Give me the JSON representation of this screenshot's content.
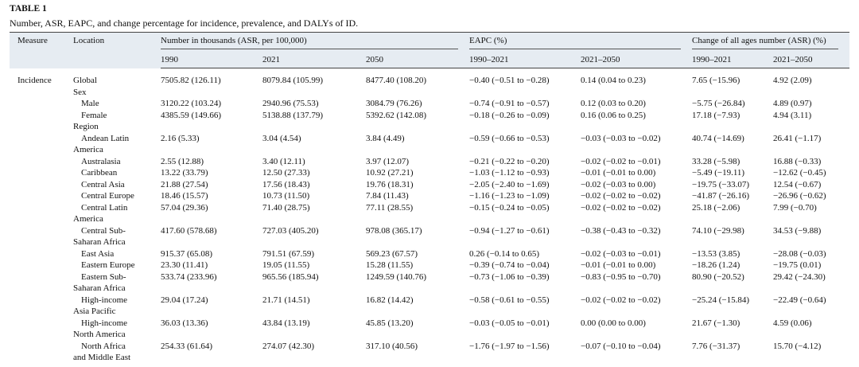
{
  "header": {
    "label": "TABLE 1",
    "caption": "Number, ASR, EAPC, and change percentage for incidence, prevalence, and DALYs of ID."
  },
  "table": {
    "group_headers": [
      "Measure",
      "Location",
      "Number in thousands (ASR, per 100,000)",
      "EAPC (%)",
      "Change of all ages number (ASR) (%)"
    ],
    "sub_headers": [
      "1990",
      "2021",
      "2050",
      "1990–2021",
      "2021–2050",
      "1990–2021",
      "2021–2050"
    ],
    "rows": [
      {
        "measure": "Incidence",
        "location": [
          "Global"
        ],
        "values": [
          "7505.82 (126.11)",
          "8079.84 (105.99)",
          "8477.40 (108.20)",
          "−0.40 (−0.51 to −0.28)",
          "0.14 (0.04 to 0.23)",
          "7.65 (−15.96)",
          "4.92 (2.09)"
        ]
      },
      {
        "section": "Sex"
      },
      {
        "location": [
          "Male"
        ],
        "values": [
          "3120.22 (103.24)",
          "2940.96 (75.53)",
          "3084.79 (76.26)",
          "−0.74 (−0.91 to −0.57)",
          "0.12 (0.03 to 0.20)",
          "−5.75 (−26.84)",
          "4.89 (0.97)"
        ]
      },
      {
        "location": [
          "Female"
        ],
        "values": [
          "4385.59 (149.66)",
          "5138.88 (137.79)",
          "5392.62 (142.08)",
          "−0.18 (−0.26 to −0.09)",
          "0.16 (0.06 to 0.25)",
          "17.18 (−7.93)",
          "4.94 (3.11)"
        ]
      },
      {
        "section": "Region"
      },
      {
        "location": [
          "Andean Latin",
          "America"
        ],
        "values": [
          "2.16 (5.33)",
          "3.04 (4.54)",
          "3.84 (4.49)",
          "−0.59 (−0.66 to −0.53)",
          "−0.03 (−0.03 to −0.02)",
          "40.74 (−14.69)",
          "26.41 (−1.17)"
        ]
      },
      {
        "location": [
          "Australasia"
        ],
        "values": [
          "2.55 (12.88)",
          "3.40 (12.11)",
          "3.97 (12.07)",
          "−0.21 (−0.22 to −0.20)",
          "−0.02 (−0.02 to −0.01)",
          "33.28 (−5.98)",
          "16.88 (−0.33)"
        ]
      },
      {
        "location": [
          "Caribbean"
        ],
        "values": [
          "13.22 (33.79)",
          "12.50 (27.33)",
          "10.92 (27.21)",
          "−1.03 (−1.12 to −0.93)",
          "−0.01 (−0.01 to 0.00)",
          "−5.49 (−19.11)",
          "−12.62 (−0.45)"
        ]
      },
      {
        "location": [
          "Central Asia"
        ],
        "values": [
          "21.88 (27.54)",
          "17.56 (18.43)",
          "19.76 (18.31)",
          "−2.05 (−2.40 to −1.69)",
          "−0.02 (−0.03 to 0.00)",
          "−19.75 (−33.07)",
          "12.54 (−0.67)"
        ]
      },
      {
        "location": [
          "Central Europe"
        ],
        "values": [
          "18.46 (15.57)",
          "10.73 (11.50)",
          "7.84 (11.43)",
          "−1.16 (−1.23 to −1.09)",
          "−0.02 (−0.02 to −0.02)",
          "−41.87 (−26.16)",
          "−26.96 (−0.62)"
        ]
      },
      {
        "location": [
          "Central Latin",
          "America"
        ],
        "values": [
          "57.04 (29.36)",
          "71.40 (28.75)",
          "77.11 (28.55)",
          "−0.15 (−0.24 to −0.05)",
          "−0.02 (−0.02 to −0.02)",
          "25.18 (−2.06)",
          "7.99 (−0.70)"
        ]
      },
      {
        "location": [
          "Central Sub-",
          "Saharan Africa"
        ],
        "values": [
          "417.60 (578.68)",
          "727.03 (405.20)",
          "978.08 (365.17)",
          "−0.94 (−1.27 to −0.61)",
          "−0.38 (−0.43 to −0.32)",
          "74.10 (−29.98)",
          "34.53 (−9.88)"
        ]
      },
      {
        "location": [
          "East Asia"
        ],
        "values": [
          "915.37 (65.08)",
          "791.51 (67.59)",
          "569.23 (67.57)",
          "0.26 (−0.14 to 0.65)",
          "−0.02 (−0.03 to −0.01)",
          "−13.53 (3.85)",
          "−28.08 (−0.03)"
        ]
      },
      {
        "location": [
          "Eastern Europe"
        ],
        "values": [
          "23.30 (11.41)",
          "19.05 (11.55)",
          "15.28 (11.55)",
          "−0.39 (−0.74 to −0.04)",
          "−0.01 (−0.01 to 0.00)",
          "−18.26 (1.24)",
          "−19.75 (0.01)"
        ]
      },
      {
        "location": [
          "Eastern Sub-",
          "Saharan Africa"
        ],
        "values": [
          "533.74 (233.96)",
          "965.56 (185.94)",
          "1249.59 (140.76)",
          "−0.73 (−1.06 to −0.39)",
          "−0.83 (−0.95 to −0.70)",
          "80.90 (−20.52)",
          "29.42 (−24.30)"
        ]
      },
      {
        "location": [
          "High-income",
          "Asia Pacific"
        ],
        "values": [
          "29.04 (17.24)",
          "21.71 (14.51)",
          "16.82 (14.42)",
          "−0.58 (−0.61 to −0.55)",
          "−0.02 (−0.02 to −0.02)",
          "−25.24 (−15.84)",
          "−22.49 (−0.64)"
        ]
      },
      {
        "location": [
          "High-income",
          "North America"
        ],
        "values": [
          "36.03 (13.36)",
          "43.84 (13.19)",
          "45.85 (13.20)",
          "−0.03 (−0.05 to −0.01)",
          "0.00 (0.00 to 0.00)",
          "21.67 (−1.30)",
          "4.59 (0.06)"
        ]
      },
      {
        "location": [
          "North Africa",
          "and Middle East"
        ],
        "values": [
          "254.33 (61.64)",
          "274.07 (42.30)",
          "317.10 (40.56)",
          "−1.76 (−1.97 to −1.56)",
          "−0.07 (−0.10 to −0.04)",
          "7.76 (−31.37)",
          "15.70 (−4.12)"
        ]
      }
    ]
  }
}
